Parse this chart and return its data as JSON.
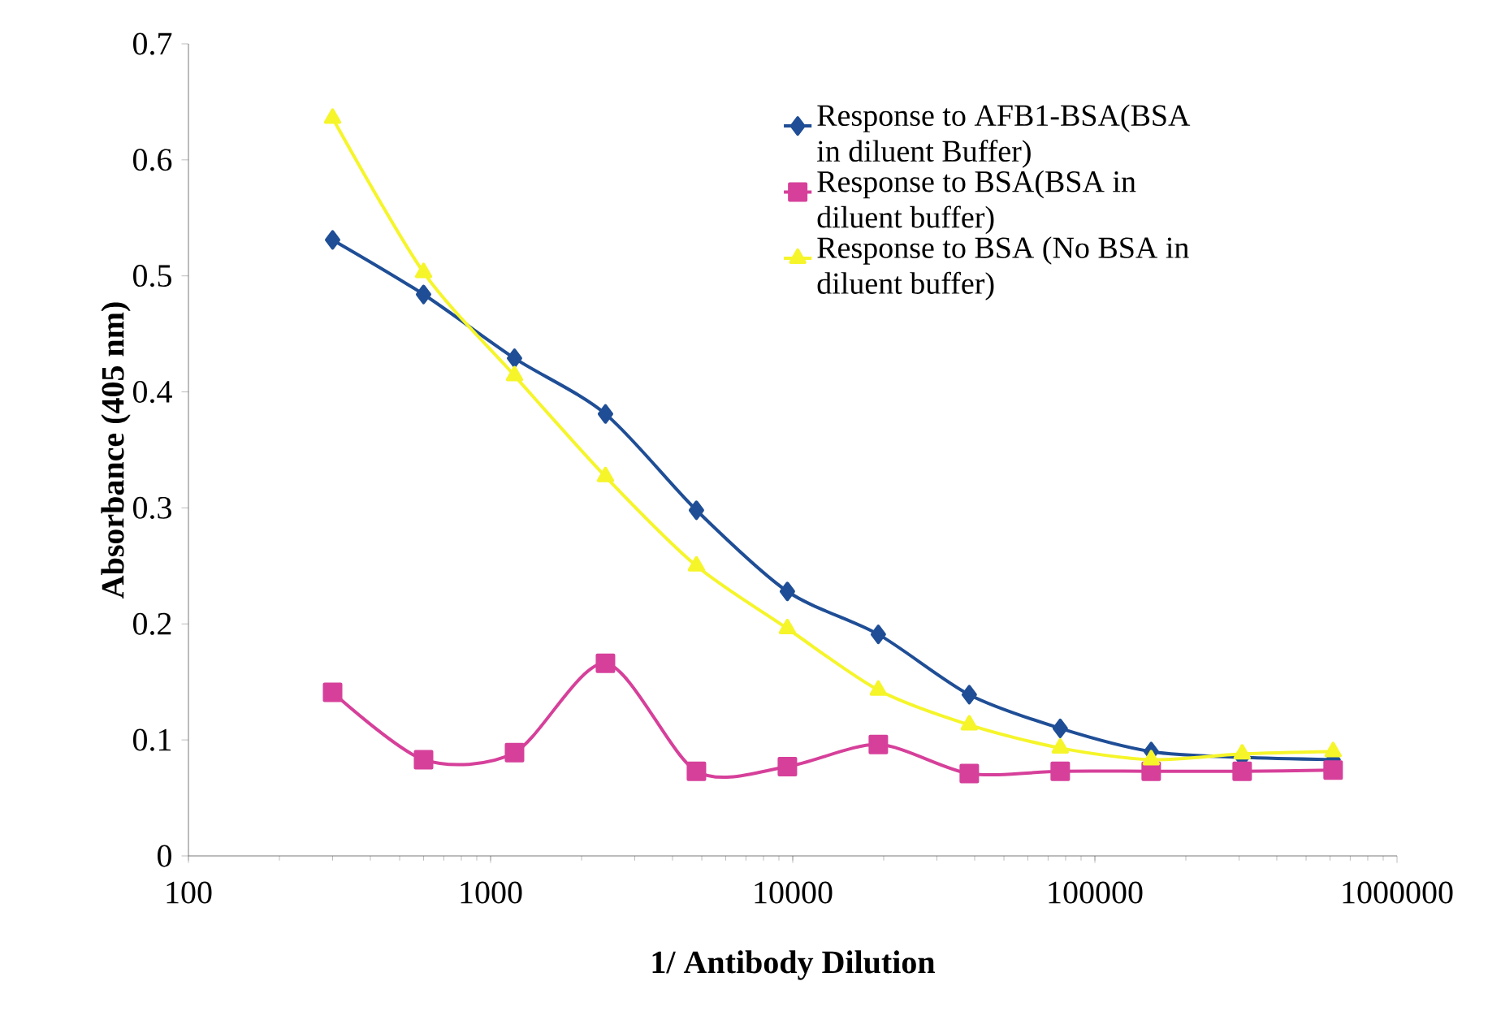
{
  "chart_data": {
    "type": "line",
    "xlabel": "1/ Antibody Dilution",
    "ylabel": "Absorbance (405 nm)",
    "log": "x",
    "legend": "top right",
    "x": [
      300,
      600,
      1200,
      2400,
      4800,
      9600,
      19200,
      38400,
      76800,
      153600,
      307200,
      614400
    ],
    "xlim": [
      100,
      1000000
    ],
    "xticks": [
      100,
      1000,
      10000,
      100000,
      1000000
    ],
    "ylim": [
      0,
      0.7
    ],
    "yticks": [
      0,
      0.1,
      0.2,
      0.3,
      0.4,
      0.5,
      0.6,
      0.7
    ],
    "series": [
      {
        "name": "Response to AFB1-BSA(BSA in diluent Buffer)",
        "color": "#1f4e96",
        "marker": "diamond",
        "values": [
          0.531,
          0.484,
          0.429,
          0.381,
          0.298,
          0.228,
          0.191,
          0.139,
          0.11,
          0.09,
          0.085,
          0.083
        ]
      },
      {
        "name": "Response to BSA(BSA in diluent buffer)",
        "color": "#d6409a",
        "marker": "square",
        "values": [
          0.141,
          0.083,
          0.089,
          0.166,
          0.073,
          0.077,
          0.096,
          0.071,
          0.073,
          0.073,
          0.073,
          0.074
        ]
      },
      {
        "name": "Response to BSA (No BSA in diluent buffer)",
        "color": "#f5f52a",
        "marker": "triangle",
        "values": [
          0.636,
          0.503,
          0.414,
          0.327,
          0.25,
          0.196,
          0.143,
          0.113,
          0.093,
          0.083,
          0.088,
          0.09
        ]
      }
    ]
  }
}
